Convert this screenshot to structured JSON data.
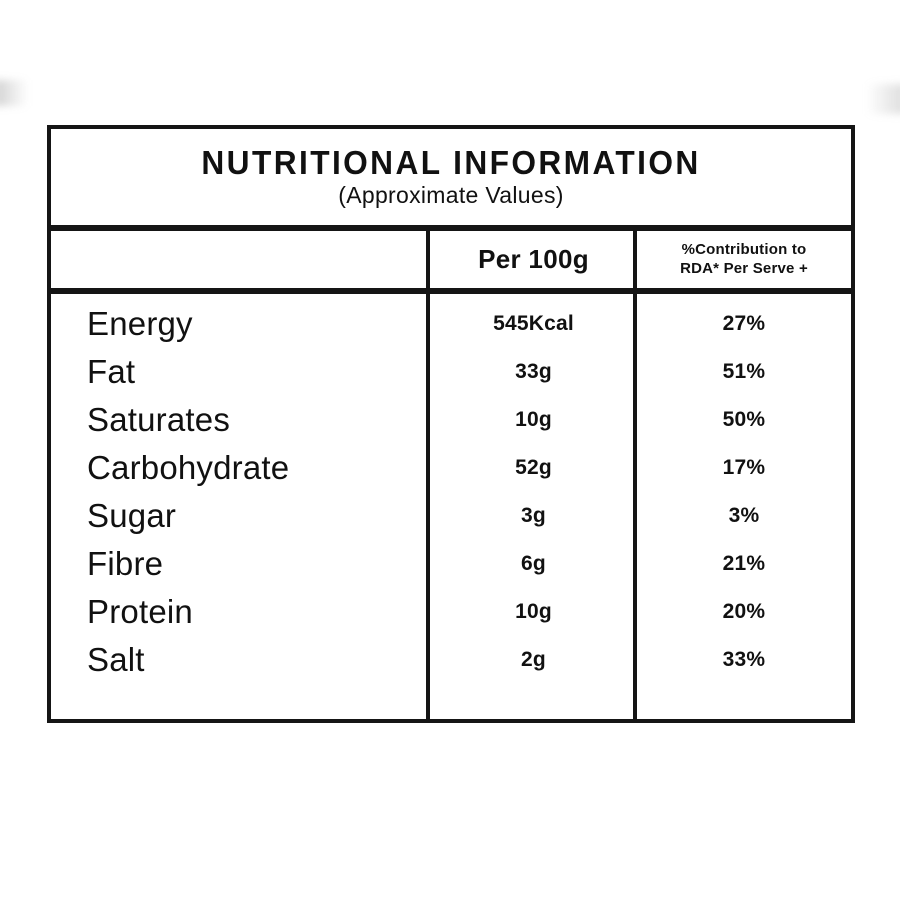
{
  "table": {
    "title": "NUTRITIONAL INFORMATION",
    "subtitle": "(Approximate Values)",
    "columns": {
      "nutrient": "",
      "per_100g": "Per 100g",
      "rda_line1": "%Contribution to",
      "rda_line2": "RDA* Per Serve +"
    },
    "rows": [
      {
        "label": "Energy",
        "per100g": "545Kcal",
        "rda": "27%"
      },
      {
        "label": "Fat",
        "per100g": "33g",
        "rda": "51%"
      },
      {
        "label": "Saturates",
        "per100g": "10g",
        "rda": "50%"
      },
      {
        "label": "Carbohydrate",
        "per100g": "52g",
        "rda": "17%"
      },
      {
        "label": "Sugar",
        "per100g": "3g",
        "rda": "3%"
      },
      {
        "label": "Fibre",
        "per100g": "6g",
        "rda": "21%"
      },
      {
        "label": "Protein",
        "per100g": "10g",
        "rda": "20%"
      },
      {
        "label": "Salt",
        "per100g": "2g",
        "rda": "33%"
      }
    ],
    "colors": {
      "border": "#151515",
      "text": "#111111",
      "background": "#ffffff"
    }
  }
}
